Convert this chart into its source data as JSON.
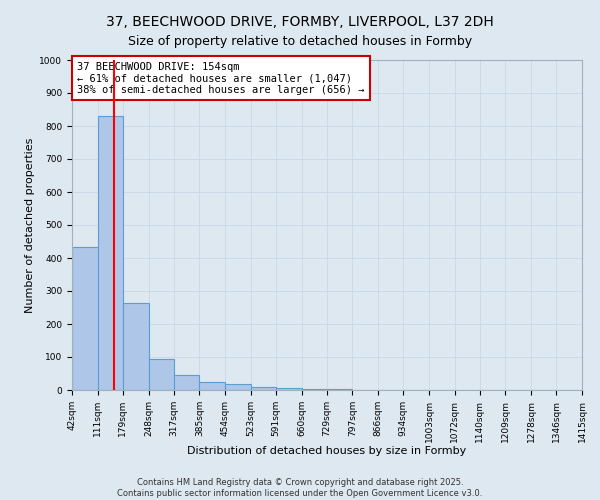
{
  "title_line1": "37, BEECHWOOD DRIVE, FORMBY, LIVERPOOL, L37 2DH",
  "title_line2": "Size of property relative to detached houses in Formby",
  "bin_edges": [
    42,
    111,
    179,
    248,
    317,
    385,
    454,
    523,
    591,
    660,
    729,
    797,
    866,
    934,
    1003,
    1072,
    1140,
    1209,
    1278,
    1346,
    1415
  ],
  "bar_heights": [
    434,
    830,
    265,
    95,
    46,
    25,
    18,
    10,
    5,
    3,
    2,
    1,
    1,
    1,
    0,
    0,
    0,
    0,
    0,
    0
  ],
  "bar_color": "#aec6e8",
  "bar_edgecolor": "#5a9fd4",
  "grid_color": "#c8d8e8",
  "background_color": "#dde8f0",
  "red_line_x": 154,
  "annotation_text_line1": "37 BEECHWOOD DRIVE: 154sqm",
  "annotation_text_line2": "← 61% of detached houses are smaller (1,047)",
  "annotation_text_line3": "38% of semi-detached houses are larger (656) →",
  "annotation_box_color": "#ffffff",
  "annotation_box_edgecolor": "#cc0000",
  "xlabel": "Distribution of detached houses by size in Formby",
  "ylabel": "Number of detached properties",
  "ylim": [
    0,
    1000
  ],
  "yticks": [
    0,
    100,
    200,
    300,
    400,
    500,
    600,
    700,
    800,
    900,
    1000
  ],
  "footer_line1": "Contains HM Land Registry data © Crown copyright and database right 2025.",
  "footer_line2": "Contains public sector information licensed under the Open Government Licence v3.0.",
  "title_fontsize": 10,
  "axis_label_fontsize": 8,
  "tick_fontsize": 6.5,
  "annotation_fontsize": 7.5,
  "footer_fontsize": 6
}
